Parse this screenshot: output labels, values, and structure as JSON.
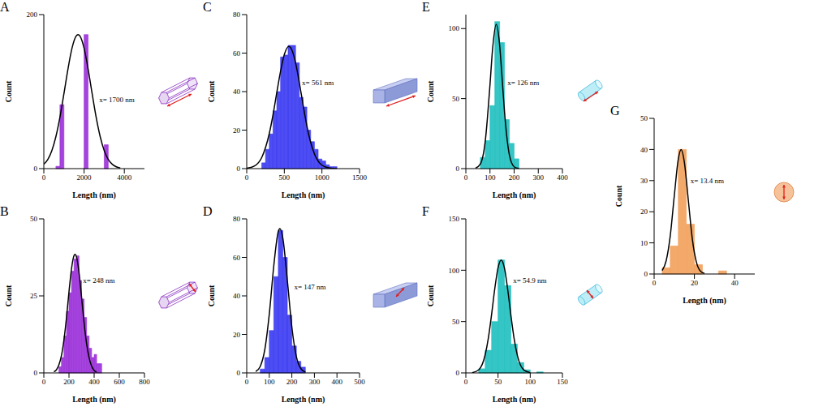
{
  "chart_data": [
    {
      "type": "histogram",
      "panel": "A",
      "xlabel": "Length (nm)",
      "ylabel": "Count",
      "annotation": "x= 1700 nm",
      "color": "#9b30d9",
      "bins": [
        600,
        800,
        1000,
        1200,
        1400,
        1600,
        1800,
        2000,
        2200,
        2400,
        2600,
        2800,
        3000,
        3200
      ],
      "values": [
        3,
        83,
        0,
        0,
        0,
        0,
        0,
        174,
        0,
        0,
        0,
        0,
        31
      ],
      "xlim": [
        0,
        5000
      ],
      "xticks": [
        0,
        2000,
        4000
      ],
      "ylim": [
        0,
        200
      ],
      "yticks": [
        0,
        200
      ],
      "fit": {
        "color": "#000000",
        "x": [
          0,
          200,
          400,
          600,
          800,
          1000,
          1200,
          1400,
          1600,
          1700,
          1800,
          2000,
          2200,
          2400,
          2600,
          2800,
          3000,
          3200,
          3400,
          3600,
          3800
        ],
        "values": [
          5.7,
          12.1,
          23.5,
          41.6,
          66.7,
          97.4,
          129.4,
          156.4,
          172,
          174,
          172,
          156.4,
          129.4,
          97.4,
          66.7,
          41.6,
          23.5,
          12.1,
          5.7,
          2.4,
          0.9
        ]
      }
    },
    {
      "type": "histogram",
      "panel": "B",
      "xlabel": "Length (nm)",
      "ylabel": "Count",
      "annotation": "x= 248 nm",
      "color": "#9b30d9",
      "bins": [
        120,
        140,
        160,
        180,
        200,
        220,
        240,
        260,
        280,
        300,
        320,
        340,
        360,
        380,
        400,
        420,
        440,
        460
      ],
      "values": [
        2,
        5,
        12,
        20,
        26,
        33,
        37,
        38,
        30,
        24,
        18,
        12,
        8,
        5,
        6,
        3,
        3
      ],
      "xlim": [
        0,
        800
      ],
      "xticks": [
        0,
        200,
        400,
        600,
        800
      ],
      "ylim": [
        0,
        50
      ],
      "yticks": [
        0,
        25,
        50
      ],
      "fit": {
        "color": "#000000",
        "x": [
          80,
          100,
          120,
          140,
          160,
          180,
          200,
          220,
          240,
          248,
          260,
          280,
          300,
          320,
          340,
          360,
          380,
          400,
          420
        ],
        "values": [
          0.4,
          1.0,
          2.6,
          5.6,
          10.7,
          17.9,
          26.3,
          33.8,
          38.1,
          38.5,
          37.6,
          32.5,
          24.6,
          16.3,
          9.5,
          4.9,
          2.2,
          0.8,
          0.3
        ]
      }
    },
    {
      "type": "histogram",
      "panel": "C",
      "xlabel": "Length (nm)",
      "ylabel": "Count",
      "annotation": "x= 561 nm",
      "color": "#3a3af2",
      "bins": [
        200,
        250,
        300,
        350,
        400,
        450,
        500,
        550,
        600,
        650,
        700,
        750,
        800,
        850,
        900,
        950,
        1000,
        1050,
        1100,
        1150,
        1200
      ],
      "values": [
        3,
        10,
        18,
        30,
        40,
        58,
        59,
        64,
        64,
        55,
        37,
        32,
        20,
        14,
        10,
        5,
        4,
        2,
        1,
        1
      ],
      "xlim": [
        0,
        1500
      ],
      "xticks": [
        0,
        500,
        1000,
        1500
      ],
      "ylim": [
        0,
        80
      ],
      "yticks": [
        0,
        20,
        40,
        60,
        80
      ],
      "fit": {
        "color": "#000000",
        "x": [
          0,
          100,
          200,
          300,
          350,
          400,
          450,
          500,
          561,
          600,
          650,
          700,
          750,
          800,
          850,
          900,
          1000,
          1100,
          1200
        ],
        "values": [
          0.2,
          1.3,
          5.8,
          18.2,
          28.0,
          39.5,
          50.6,
          59.3,
          63.5,
          61.7,
          54.9,
          44.5,
          33.0,
          22.2,
          13.7,
          7.7,
          1.8,
          0.3,
          0.0
        ]
      }
    },
    {
      "type": "histogram",
      "panel": "D",
      "xlabel": "Length (nm)",
      "ylabel": "Count",
      "annotation": "x= 147 nm",
      "color": "#3a3af2",
      "bins": [
        60,
        80,
        100,
        120,
        140,
        160,
        180,
        200,
        220,
        240,
        260
      ],
      "values": [
        2,
        8,
        22,
        50,
        74,
        60,
        30,
        14,
        6,
        3
      ],
      "xlim": [
        0,
        500
      ],
      "xticks": [
        0,
        100,
        200,
        300,
        400,
        500
      ],
      "ylim": [
        0,
        80
      ],
      "yticks": [
        0,
        20,
        40,
        60,
        80
      ],
      "fit": {
        "color": "#000000",
        "x": [
          40,
          60,
          80,
          100,
          120,
          140,
          147,
          160,
          180,
          200,
          220,
          240,
          260
        ],
        "values": [
          0.7,
          3.4,
          12.0,
          30.5,
          55.7,
          73.5,
          75,
          70.0,
          48.1,
          23.8,
          8.5,
          2.2,
          0.4
        ]
      }
    },
    {
      "type": "histogram",
      "panel": "E",
      "xlabel": "Length (nm)",
      "ylabel": "Count",
      "annotation": "x= 126 nm",
      "color": "#1fbfbf",
      "bins": [
        60,
        80,
        100,
        120,
        140,
        160,
        180,
        200,
        220
      ],
      "values": [
        8,
        20,
        45,
        105,
        90,
        35,
        18,
        7
      ],
      "xlim": [
        0,
        400
      ],
      "xticks": [
        0,
        100,
        200,
        300,
        400
      ],
      "ylim": [
        0,
        110
      ],
      "yticks": [
        0,
        50,
        100
      ],
      "fit": {
        "color": "#000000",
        "x": [
          40,
          60,
          80,
          100,
          110,
          126,
          140,
          150,
          160,
          180,
          200,
          220
        ],
        "values": [
          0.3,
          3.2,
          19.0,
          59.9,
          83.9,
          103,
          88.1,
          65.0,
          40.8,
          10.0,
          1.3,
          0.1
        ]
      }
    },
    {
      "type": "histogram",
      "panel": "F",
      "xlabel": "Length (nm)",
      "ylabel": "Count",
      "annotation": "x= 54.9 nm",
      "color": "#1fbfbf",
      "bins": [
        20,
        30,
        40,
        50,
        60,
        70,
        80,
        90,
        100,
        110,
        120
      ],
      "values": [
        4,
        22,
        50,
        110,
        85,
        28,
        10,
        3,
        0,
        1
      ],
      "xlim": [
        0,
        150
      ],
      "xticks": [
        0,
        50,
        100,
        150
      ],
      "ylim": [
        0,
        150
      ],
      "yticks": [
        0,
        50,
        100,
        150
      ],
      "fit": {
        "color": "#000000",
        "x": [
          10,
          20,
          30,
          35,
          40,
          45,
          50,
          54.9,
          60,
          65,
          70,
          75,
          80,
          90,
          100
        ],
        "values": [
          0.3,
          3.0,
          17.6,
          34.1,
          57.0,
          82.3,
          102.4,
          110,
          101.9,
          81.3,
          56.0,
          33.3,
          17.1,
          2.9,
          0.3
        ]
      }
    },
    {
      "type": "histogram",
      "panel": "G",
      "xlabel": "Length (nm)",
      "ylabel": "Count",
      "annotation": "x= 13.4 nm",
      "color": "#f2a05a",
      "bins": [
        4,
        8,
        12,
        16,
        20,
        24,
        28,
        32,
        36
      ],
      "values": [
        2,
        9,
        40,
        16,
        3,
        0,
        0,
        1
      ],
      "xlim": [
        0,
        50
      ],
      "xticks": [
        0,
        20,
        40
      ],
      "ylim": [
        0,
        50
      ],
      "yticks": [
        0,
        10,
        20,
        30,
        40,
        50
      ],
      "fit": {
        "color": "#000000",
        "x": [
          4,
          6,
          8,
          10,
          12,
          13.4,
          15,
          17,
          19,
          21,
          23,
          25
        ],
        "values": [
          1.1,
          4.3,
          12.2,
          25.0,
          36.9,
          40,
          36.0,
          23.6,
          11.1,
          3.8,
          0.9,
          0.2
        ]
      }
    }
  ]
}
